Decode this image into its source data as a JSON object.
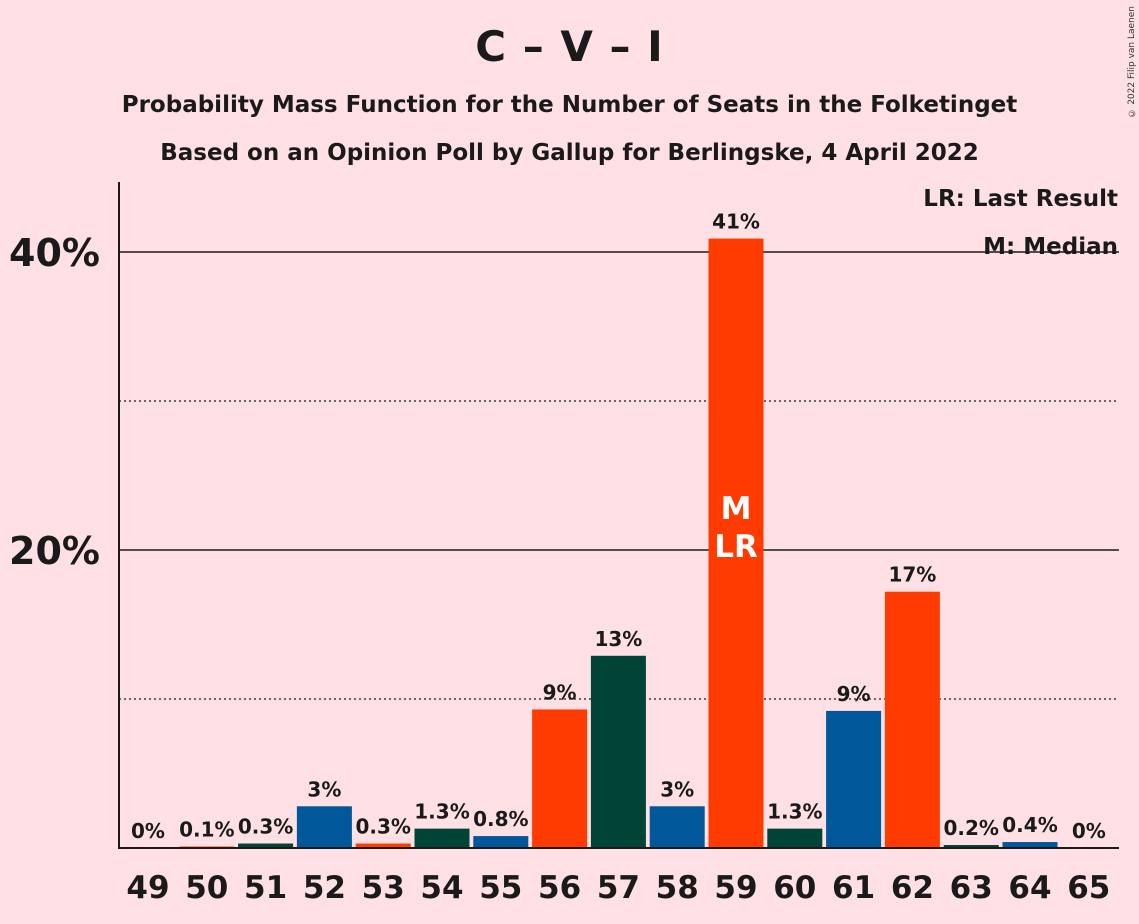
{
  "title": "C – V – I",
  "subtitle": "Probability Mass Function for the Number of Seats in the Folketinget",
  "subtitle2": "Based on an Opinion Poll by Gallup for Berlingske, 4 April 2022",
  "copyright": "© 2022 Filip van Laenen",
  "legend": {
    "lr": "LR: Last Result",
    "m": "M: Median"
  },
  "colors": {
    "background": "#ffe0e4",
    "red": "#ff3b00",
    "blue": "#00589a",
    "green": "#004438",
    "text": "#1a1a1a"
  },
  "chart_data": {
    "type": "bar",
    "categories": [
      "49",
      "50",
      "51",
      "52",
      "53",
      "54",
      "55",
      "56",
      "57",
      "58",
      "59",
      "60",
      "61",
      "62",
      "63",
      "64",
      "65"
    ],
    "values": [
      0,
      0.1,
      0.3,
      2.8,
      0.3,
      1.3,
      0.8,
      9.3,
      12.9,
      2.8,
      40.9,
      1.3,
      9.2,
      17.2,
      0.2,
      0.4,
      0
    ],
    "labels": [
      "0%",
      "0.1%",
      "0.3%",
      "3%",
      "0.3%",
      "1.3%",
      "0.8%",
      "9%",
      "13%",
      "3%",
      "41%",
      "1.3%",
      "9%",
      "17%",
      "0.2%",
      "0.4%",
      "0%"
    ],
    "colors": [
      "red",
      "red",
      "green",
      "blue",
      "red",
      "green",
      "blue",
      "red",
      "green",
      "blue",
      "red",
      "green",
      "blue",
      "red",
      "green",
      "blue",
      "red"
    ],
    "yticks": [
      {
        "value": 20,
        "label": "20%"
      },
      {
        "value": 40,
        "label": "40%"
      }
    ],
    "minor_gridlines": [
      10,
      30
    ],
    "ylim": [
      0,
      45
    ],
    "median_category": "59",
    "last_result_category": "59",
    "median_marker": "M",
    "last_result_marker": "LR"
  }
}
